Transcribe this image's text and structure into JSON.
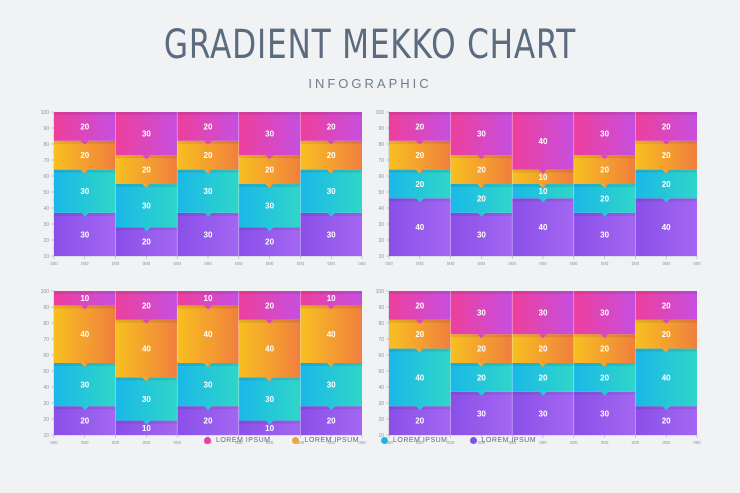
{
  "title": "GRADIENT MEKKO CHART",
  "subtitle": "INFOGRAPHIC",
  "legend": [
    {
      "label": "LOREM IPSUM",
      "color": "#e83ea8"
    },
    {
      "label": "LOREM IPSUM",
      "color": "#f5a13a"
    },
    {
      "label": "LOREM IPSUM",
      "color": "#22b1e8"
    },
    {
      "label": "LOREM IPSUM",
      "color": "#7b55e8"
    }
  ],
  "chart_data": [
    {
      "type": "bar",
      "stacked": true,
      "yticks": [
        "100",
        "90",
        "80",
        "70",
        "60",
        "50",
        "40",
        "30",
        "20",
        "10"
      ],
      "xticks": [
        "000",
        "000",
        "000",
        "000",
        "000",
        "000",
        "000",
        "000",
        "000",
        "000",
        "000"
      ],
      "columns": [
        {
          "segments": [
            30,
            30,
            20,
            20
          ]
        },
        {
          "segments": [
            20,
            30,
            20,
            30
          ]
        },
        {
          "segments": [
            30,
            30,
            20,
            20
          ]
        },
        {
          "segments": [
            20,
            30,
            20,
            30
          ]
        },
        {
          "segments": [
            30,
            30,
            20,
            20
          ]
        }
      ]
    },
    {
      "type": "bar",
      "stacked": true,
      "yticks": [
        "100",
        "90",
        "80",
        "70",
        "60",
        "50",
        "40",
        "30",
        "20",
        "10"
      ],
      "xticks": [
        "000",
        "000",
        "000",
        "000",
        "000",
        "000",
        "000",
        "000",
        "000",
        "000",
        "000"
      ],
      "columns": [
        {
          "segments": [
            40,
            20,
            20,
            20
          ]
        },
        {
          "segments": [
            30,
            20,
            20,
            30
          ]
        },
        {
          "segments": [
            40,
            10,
            10,
            40
          ]
        },
        {
          "segments": [
            30,
            20,
            20,
            30
          ]
        },
        {
          "segments": [
            40,
            20,
            20,
            20
          ]
        }
      ]
    },
    {
      "type": "bar",
      "stacked": true,
      "yticks": [
        "100",
        "90",
        "80",
        "70",
        "60",
        "50",
        "40",
        "30",
        "20",
        "10"
      ],
      "xticks": [
        "000",
        "000",
        "000",
        "000",
        "000",
        "000",
        "000",
        "000",
        "000",
        "000",
        "000"
      ],
      "columns": [
        {
          "segments": [
            20,
            30,
            40,
            10
          ]
        },
        {
          "segments": [
            10,
            30,
            40,
            20
          ]
        },
        {
          "segments": [
            20,
            30,
            40,
            10
          ]
        },
        {
          "segments": [
            10,
            30,
            40,
            20
          ]
        },
        {
          "segments": [
            20,
            30,
            40,
            10
          ]
        }
      ]
    },
    {
      "type": "bar",
      "stacked": true,
      "yticks": [
        "100",
        "90",
        "80",
        "70",
        "60",
        "50",
        "40",
        "30",
        "20",
        "10"
      ],
      "xticks": [
        "000",
        "000",
        "000",
        "000",
        "000",
        "000",
        "000",
        "000",
        "000",
        "000",
        "000"
      ],
      "columns": [
        {
          "segments": [
            20,
            40,
            20,
            20
          ]
        },
        {
          "segments": [
            30,
            20,
            20,
            30
          ]
        },
        {
          "segments": [
            30,
            20,
            20,
            30
          ]
        },
        {
          "segments": [
            30,
            20,
            20,
            30
          ]
        },
        {
          "segments": [
            20,
            40,
            20,
            20
          ]
        }
      ]
    }
  ]
}
